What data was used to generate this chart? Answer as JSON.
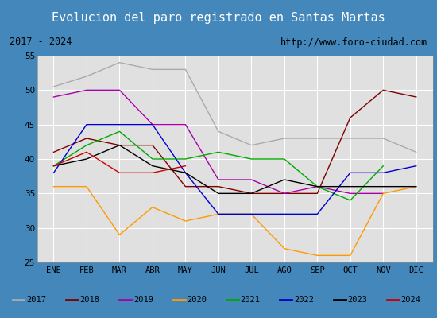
{
  "title": "Evolucion del paro registrado en Santas Martas",
  "subtitle_left": "2017 - 2024",
  "subtitle_right": "http://www.foro-ciudad.com",
  "months": [
    "ENE",
    "FEB",
    "MAR",
    "ABR",
    "MAY",
    "JUN",
    "JUL",
    "AGO",
    "SEP",
    "OCT",
    "NOV",
    "DIC"
  ],
  "ylim": [
    25,
    55
  ],
  "yticks": [
    25,
    30,
    35,
    40,
    45,
    50,
    55
  ],
  "series": {
    "2017": {
      "color": "#aaaaaa",
      "values": [
        50.5,
        52,
        54,
        53,
        53,
        44,
        42,
        43,
        43,
        43,
        43,
        41
      ]
    },
    "2018": {
      "color": "#800000",
      "values": [
        41,
        43,
        42,
        42,
        36,
        36,
        35,
        35,
        35,
        46,
        50,
        49
      ]
    },
    "2019": {
      "color": "#aa00aa",
      "values": [
        49,
        50,
        50,
        45,
        45,
        37,
        37,
        35,
        36,
        35,
        35,
        null
      ]
    },
    "2020": {
      "color": "#ff9900",
      "values": [
        36,
        36,
        29,
        33,
        31,
        32,
        32,
        27,
        26,
        26,
        35,
        36
      ]
    },
    "2021": {
      "color": "#00aa00",
      "values": [
        39,
        42,
        44,
        40,
        40,
        41,
        40,
        40,
        36,
        34,
        39,
        null
      ]
    },
    "2022": {
      "color": "#0000cc",
      "values": [
        38,
        45,
        45,
        45,
        38,
        32,
        32,
        32,
        32,
        38,
        38,
        39
      ]
    },
    "2023": {
      "color": "#000000",
      "values": [
        39,
        40,
        42,
        39,
        38,
        35,
        35,
        37,
        36,
        36,
        36,
        36
      ]
    },
    "2024": {
      "color": "#cc0000",
      "values": [
        39,
        41,
        38,
        38,
        39,
        null,
        null,
        null,
        null,
        null,
        null,
        null
      ]
    }
  },
  "title_bg_color": "#4488bb",
  "title_font_color": "#ffffff",
  "subtitle_bg_color": "#d8d8d8",
  "plot_bg_color": "#e0e0e0",
  "grid_color": "#ffffff",
  "legend_bg_color": "#f0f0f0",
  "border_color": "#4488bb"
}
